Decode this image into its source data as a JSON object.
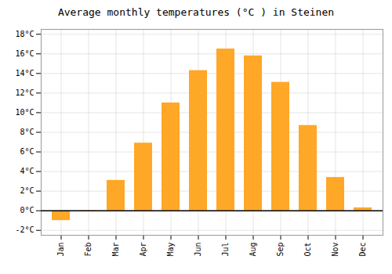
{
  "chart_data": {
    "type": "bar",
    "title": "Average monthly temperatures (°C ) in Steinen",
    "categories": [
      "Jan",
      "Feb",
      "Mar",
      "Apr",
      "May",
      "Jun",
      "Jul",
      "Aug",
      "Sep",
      "Oct",
      "Nov",
      "Dec"
    ],
    "values": [
      -1.0,
      -0.1,
      3.1,
      6.9,
      11.0,
      14.3,
      16.5,
      15.8,
      13.1,
      8.7,
      3.4,
      0.3
    ],
    "color": "#FFA726",
    "ylim": [
      -2.5,
      18.5
    ],
    "yticks": [
      {
        "value": -2,
        "label": "-2°C"
      },
      {
        "value": 0,
        "label": "0°C"
      },
      {
        "value": 2,
        "label": "2°C"
      },
      {
        "value": 4,
        "label": "4°C"
      },
      {
        "value": 6,
        "label": "6°C"
      },
      {
        "value": 8,
        "label": "8°C"
      },
      {
        "value": 10,
        "label": "10°C"
      },
      {
        "value": 12,
        "label": "12°C"
      },
      {
        "value": 14,
        "label": "14°C"
      },
      {
        "value": 16,
        "label": "16°C"
      },
      {
        "value": 18,
        "label": "18°C"
      }
    ],
    "grid": true
  }
}
